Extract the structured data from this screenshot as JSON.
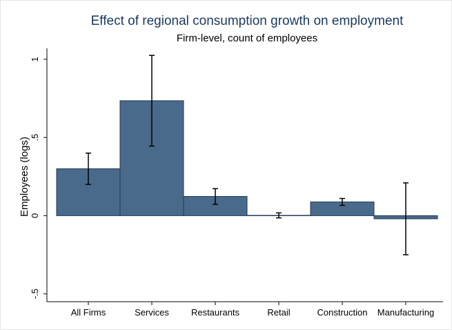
{
  "chart_data": {
    "type": "bar",
    "title": "Effect of regional consumption growth on employment",
    "subtitle": "Firm-level, count of employees",
    "y_label": "Employees (logs)",
    "categories": [
      "All Firms",
      "Services",
      "Restaurants",
      "Retail",
      "Construction",
      "Manufacturing"
    ],
    "values": [
      0.3,
      0.735,
      0.123,
      0.002,
      0.088,
      -0.02
    ],
    "errors": [
      0.1,
      0.29,
      0.05,
      0.016,
      0.022,
      0.23
    ],
    "color": "#4a6a8c",
    "ylim": [
      -0.55,
      1.07
    ],
    "yticks": [
      {
        "value": -0.5,
        "label": "-.5"
      },
      0,
      {
        "value": 0.5,
        "label": ".5"
      },
      1
    ],
    "grid": false
  }
}
